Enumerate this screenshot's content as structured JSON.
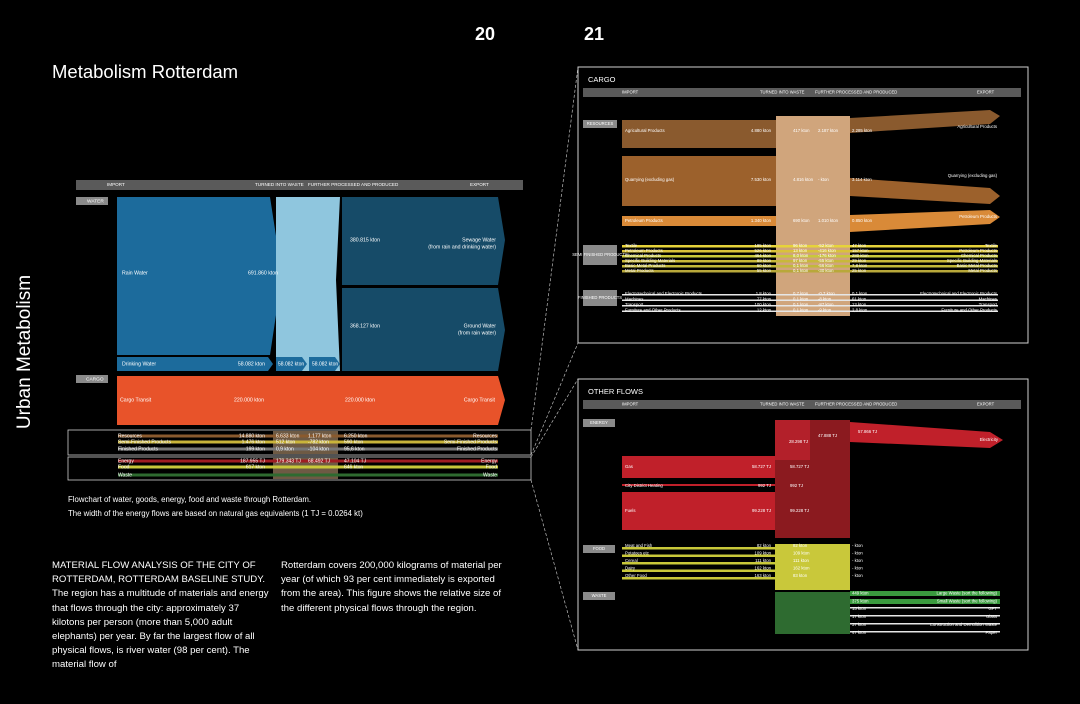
{
  "pages": {
    "left": "20",
    "right": "21"
  },
  "title": "Metabolism Rotterdam",
  "side_title": "Urban Metabolism",
  "overview": {
    "columns": [
      "IMPORT",
      "TURNED INTO WASTE",
      "FURTHER PROCESSED AND PRODUCED",
      "EXPORT"
    ],
    "sections": [
      "WATER",
      "CARGO"
    ],
    "rain_water": {
      "label": "Rain Water",
      "import": "691.860 kton"
    },
    "drinking_water": {
      "label": "Drinking Water",
      "import": "58.082 kton",
      "waste": "58.082 kton",
      "processed": "58.082 kton"
    },
    "sewage_water": {
      "value": "380.815 kton",
      "label": "Sewage Water",
      "note": "(from rain and drinking water)"
    },
    "ground_water": {
      "value": "368.127 kton",
      "label": "Ground Water",
      "note": "(from rain water)"
    },
    "cargo_transit": {
      "label": "Cargo Transit",
      "import": "220.000 kton",
      "export": "220.000 kton",
      "export_label": "Cargo Transit"
    },
    "cargo_rows": [
      {
        "label": "Resources",
        "import": "14.880 kton",
        "waste": "6.633 kton",
        "processed": "1.177 kton",
        "export": "6.250 kton",
        "export_label": "Resources"
      },
      {
        "label": "Semi-Finished Products",
        "import": "1.476 kton",
        "waste": "512 kton",
        "processed": "-782 kton",
        "export": "590 kton",
        "export_label": "Semi-Finished Products"
      },
      {
        "label": "Finished Products",
        "import": "199 kton",
        "waste": "0,9 kton",
        "processed": "-104 kton",
        "export": "95,6 kton",
        "export_label": "Finished Products"
      }
    ],
    "other_rows": [
      {
        "label": "Energy",
        "import": "187.955 TJ",
        "waste": "179.343 TJ",
        "processed": "68.492 TJ",
        "export": "47.104 TJ",
        "export_label": "Energy"
      },
      {
        "label": "Food",
        "import": "617 kton",
        "export": "646 kton",
        "export_label": "Food"
      },
      {
        "label": "Waste",
        "export_label": "Waste"
      }
    ]
  },
  "caption": [
    "Flowchart of water, goods, energy, food and waste through Rotterdam.",
    "The width of the energy flows are based on natural gas equivalents (1 TJ = 0.0264 kt)"
  ],
  "body": [
    "MATERIAL FLOW ANALYSIS OF THE CITY OF ROTTERDAM, ROTTERDAM BASELINE STUDY. The region has a multitude of materials and energy that flows through the city: approximately 37 kilotons per person (more than 5,000 adult elephants) per year. By far the largest flow of all physical flows, is river water (98 per cent). The material flow of",
    "Rotterdam covers 200,000 kilograms of material per year (of which 93 per cent immediately is exported from the area). This figure shows the relative size of the different physical flows through the region."
  ],
  "cargo_panel": {
    "title": "CARGO",
    "columns": [
      "IMPORT",
      "TURNED INTO WASTE",
      "FURTHER PROCESSED AND PRODUCED",
      "EXPORT"
    ],
    "groups": [
      {
        "tag": "RESOURCES",
        "rows": [
          {
            "label": "Agricultural Products",
            "import": "4.880 kton",
            "waste": "417 kton",
            "processed": "2.187 kton",
            "export": "2.285 kton",
            "export_label": "Agricultural Products"
          },
          {
            "label": "Quarrying (excluding gas)",
            "import": "7.530 kton",
            "waste": "4.816 kton",
            "processed": "- kton",
            "export": "3.114 kton",
            "export_label": "Quarrying (excluding gas)"
          },
          {
            "label": "Petroleum Products",
            "import": "1.340 kton",
            "waste": "690 kton",
            "processed": "1.010 kton",
            "export": "0.850 kton",
            "export_label": "Petroleum Products"
          }
        ]
      },
      {
        "tag": "SEMI FINISHED PRODUCTS",
        "rows": [
          {
            "label": "Textile",
            "import": "195 kton",
            "waste": "96 kton",
            "processed": "-52 kton",
            "export": "47 kton",
            "export_label": "Textile"
          },
          {
            "label": "Petroleum Products",
            "import": "526 kton",
            "waste": "13 kton",
            "processed": "-416 kton",
            "export": "157 kton",
            "export_label": "Petroleum Products"
          },
          {
            "label": "Chemical Products",
            "import": "464 kton",
            "waste": "8,0 kton",
            "processed": "-176 kton",
            "export": "280 kton",
            "export_label": "Chemical Products"
          },
          {
            "label": "Specific Building Materials",
            "import": "89 kton",
            "waste": "97 kton",
            "processed": "-55 kton",
            "export": "29 kton",
            "export_label": "Specific Building Materials"
          },
          {
            "label": "Basic Metal Products",
            "import": "60 kton",
            "waste": "0,1 kton",
            "processed": "-56 kton",
            "export": "7,8 kton",
            "export_label": "Basic Metal Products"
          },
          {
            "label": "Metal Products",
            "import": "55 kton",
            "waste": "0,1 kton",
            "processed": "-30 kton",
            "export": "25 kton",
            "export_label": "Metal Products"
          }
        ]
      },
      {
        "tag": "FINISHED PRODUCTS",
        "rows": [
          {
            "label": "Electrotechnical and Electronic Products",
            "import": "1,8 kton",
            "waste": "0,7 kton",
            "processed": "-0,7 kton",
            "export": "0,1 kton",
            "export_label": "Electrotechnical and Electronic Products"
          },
          {
            "label": "Machines",
            "import": "77 kton",
            "waste": "0,1 kton",
            "processed": "-8 kton",
            "export": "61 kton",
            "export_label": "Machines"
          },
          {
            "label": "Transport",
            "import": "100 kton",
            "waste": "0,1 kton",
            "processed": "-87 kton",
            "export": "13 kton",
            "export_label": "Transport"
          },
          {
            "label": "Furniture and Other Products",
            "import": "12 kton",
            "waste": "0,1 kton",
            "processed": "-9 kton",
            "export": "2,8 kton",
            "export_label": "Furniture and Other Products"
          }
        ]
      }
    ]
  },
  "other_panel": {
    "title": "OTHER FLOWS",
    "columns": [
      "IMPORT",
      "TURNED INTO WASTE",
      "FURTHER PROCESSED AND PRODUCED",
      "EXPORT"
    ],
    "energy_totals": {
      "waste": "28.298 TJ",
      "processed": "47.888 TJ",
      "export": "57.866 TJ",
      "export_label": "Electricity"
    },
    "groups": [
      {
        "tag": "ENERGY",
        "rows": [
          {
            "label": "Gas",
            "import": "58.727 TJ",
            "waste": "58.727 TJ"
          },
          {
            "label": "City District Heating",
            "import": "992 TJ",
            "waste": "992 TJ"
          },
          {
            "label": "Fuels",
            "import": "99.228 TJ",
            "waste": "99.228 TJ"
          }
        ]
      },
      {
        "tag": "FOOD",
        "rows": [
          {
            "label": "Meat and Fish",
            "import": "82 kton",
            "waste": "82 kton",
            "export": "- kton"
          },
          {
            "label": "Potatoes etc",
            "import": "109 kton",
            "waste": "109 kton",
            "export": "- kton"
          },
          {
            "label": "Cereal",
            "import": "111 kton",
            "waste": "111 kton",
            "export": "- kton"
          },
          {
            "label": "Dairy",
            "import": "162 kton",
            "waste": "162 kton",
            "export": "- kton"
          },
          {
            "label": "Other Food",
            "import": "163 kton",
            "waste": "83 kton",
            "export": "- kton"
          }
        ]
      },
      {
        "tag": "WASTE",
        "rows": [
          {
            "export": "449 kton",
            "export_label": "Large Waste (sort the following)"
          },
          {
            "export": "375 kton",
            "export_label": "Small Waste (sort the following)"
          },
          {
            "export": "15 kton",
            "export_label": "GFT"
          },
          {
            "export": "17 kton",
            "export_label": "Glass"
          },
          {
            "export": "37 kton",
            "export_label": "Construction and Demolition Waste"
          },
          {
            "export": "47 kton",
            "export_label": "Paper"
          }
        ]
      }
    ]
  }
}
